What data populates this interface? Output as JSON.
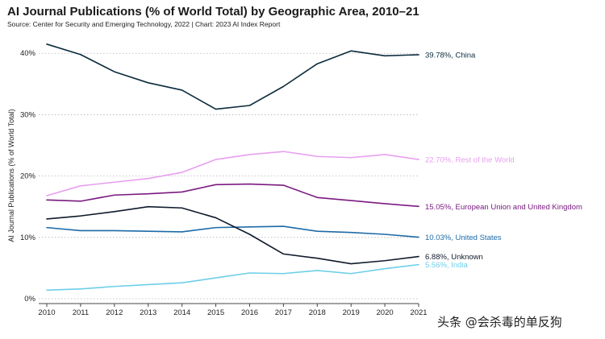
{
  "chart_data": {
    "type": "line",
    "title": "AI Journal Publications (% of World Total) by Geographic Area, 2010–21",
    "subtitle": "Source: Center for Security and Emerging Technology, 2022 | Chart: 2023 AI Index Report",
    "xlabel": "",
    "ylabel": "AI Journal Publications (% of World Total)",
    "x": [
      2010,
      2011,
      2012,
      2013,
      2014,
      2015,
      2016,
      2017,
      2018,
      2019,
      2020,
      2021
    ],
    "ylim": [
      0,
      42
    ],
    "yticks": [
      0,
      10,
      20,
      30,
      40
    ],
    "ytick_labels": [
      "0%",
      "10%",
      "20%",
      "30%",
      "40%"
    ],
    "grid": "horizontal",
    "legend": "end-of-line labels",
    "series": [
      {
        "name": "China",
        "label": "39.78%, China",
        "color": "#0b2b3c",
        "values": [
          41.5,
          39.8,
          37.0,
          35.2,
          34.0,
          30.9,
          31.5,
          34.6,
          38.3,
          40.4,
          39.6,
          39.78
        ]
      },
      {
        "name": "Rest of the World",
        "label": "22.70%, Rest of the World",
        "color": "#e89ff0",
        "values": [
          16.8,
          18.4,
          19.0,
          19.6,
          20.6,
          22.7,
          23.5,
          24.0,
          23.2,
          23.0,
          23.5,
          22.7
        ]
      },
      {
        "name": "European Union and United Kingdom",
        "label": "15.05%, European Union and United Kingdom",
        "color": "#7a1a80",
        "values": [
          16.1,
          15.9,
          16.9,
          17.1,
          17.4,
          18.6,
          18.7,
          18.5,
          16.5,
          16.0,
          15.5,
          15.05
        ]
      },
      {
        "name": "United States",
        "label": "10.03%, United States",
        "color": "#1c6aa8",
        "values": [
          11.6,
          11.1,
          11.1,
          11.0,
          10.9,
          11.6,
          11.7,
          11.8,
          11.0,
          10.8,
          10.5,
          10.03
        ]
      },
      {
        "name": "Unknown",
        "label": "6.88%, Unknown",
        "color": "#0f1a2b",
        "values": [
          13.0,
          13.5,
          14.2,
          15.0,
          14.8,
          13.2,
          10.5,
          7.3,
          6.6,
          5.7,
          6.2,
          6.88
        ]
      },
      {
        "name": "India",
        "label": "5.56%, India",
        "color": "#6ccfe8",
        "values": [
          1.4,
          1.6,
          2.0,
          2.3,
          2.6,
          3.4,
          4.2,
          4.1,
          4.6,
          4.1,
          4.9,
          5.56
        ]
      }
    ]
  },
  "watermark": "头条 @会杀毒的单反狗"
}
